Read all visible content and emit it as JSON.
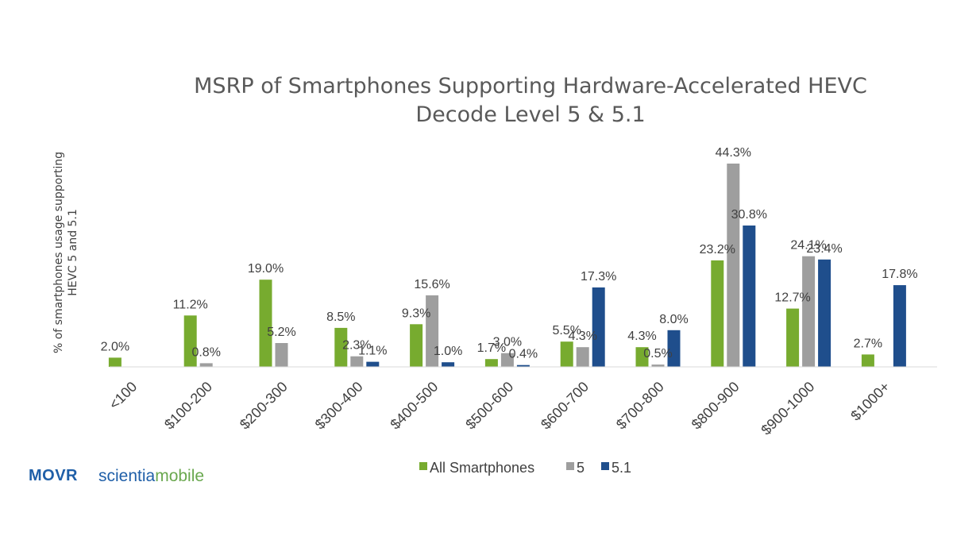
{
  "chart_data": {
    "type": "bar",
    "title": "MSRP of Smartphones Supporting Hardware-Accelerated HEVC Decode Level 5 & 5.1",
    "title_lines": [
      "MSRP of Smartphones Supporting Hardware-Accelerated HEVC",
      "Decode Level 5 & 5.1"
    ],
    "xlabel": "",
    "ylabel": "% of smartphones usage supporting HEVC 5 and 5.1",
    "ylabel_lines": [
      "% of smartphones usage supporting",
      "HEVC 5 and 5.1"
    ],
    "ylim": [
      0,
      45
    ],
    "grid": false,
    "legend_position": "bottom",
    "categories": [
      "<100",
      "$100-200",
      "$200-300",
      "$300-400",
      "$400-500",
      "$500-600",
      "$600-700",
      "$700-800",
      "$800-900",
      "$900-1000",
      "$1000+"
    ],
    "series": [
      {
        "name": "All Smartphones",
        "color": "#77ab2f",
        "values": [
          2.0,
          11.2,
          19.0,
          8.5,
          9.3,
          1.7,
          5.5,
          4.3,
          23.2,
          12.7,
          2.7
        ],
        "labels": [
          "2.0%",
          "11.2%",
          "19.0%",
          "8.5%",
          "9.3%",
          "1.7%",
          "5.5%",
          "4.3%",
          "23.2%",
          "12.7%",
          "2.7%"
        ]
      },
      {
        "name": "5",
        "color": "#9e9e9e",
        "values": [
          null,
          0.8,
          5.2,
          2.3,
          15.6,
          3.0,
          4.3,
          0.5,
          44.3,
          24.1,
          null
        ],
        "labels": [
          "",
          "0.8%",
          "5.2%",
          "2.3%",
          "15.6%",
          "3.0%",
          "4.3%",
          "0.5%",
          "44.3%",
          "24.1%",
          ""
        ]
      },
      {
        "name": "5.1",
        "color": "#1f4e8c",
        "values": [
          null,
          null,
          null,
          1.1,
          1.0,
          0.4,
          17.3,
          8.0,
          30.8,
          23.4,
          17.8
        ],
        "labels": [
          "",
          "",
          "",
          "1.1%",
          "1.0%",
          "0.4%",
          "17.3%",
          "8.0%",
          "30.8%",
          "23.4%",
          "17.8%"
        ]
      }
    ]
  },
  "branding": {
    "logo1": "MOVR",
    "logo2_part1": "scientia",
    "logo2_part2": "mobile"
  }
}
